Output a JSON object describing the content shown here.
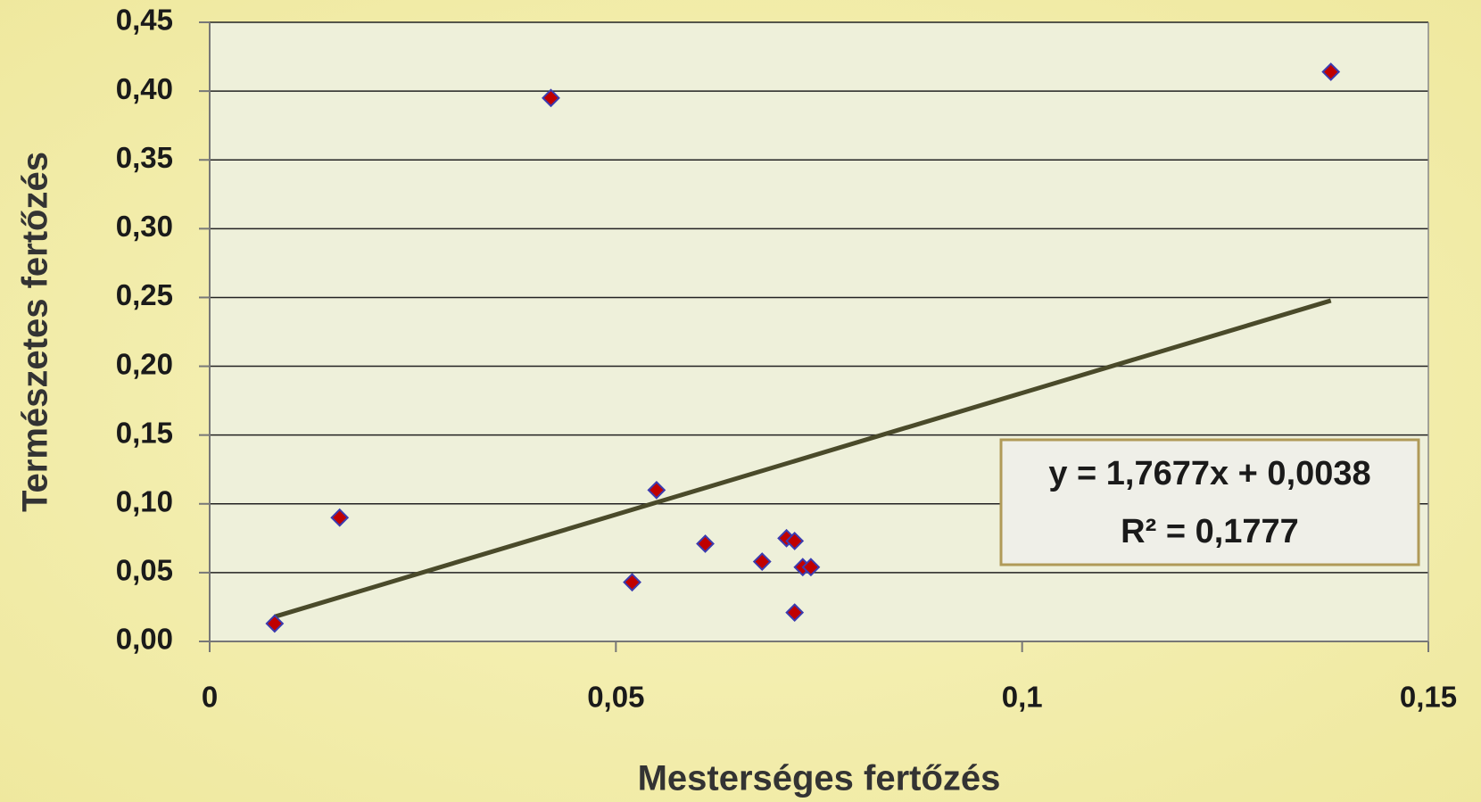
{
  "chart_data": {
    "type": "scatter",
    "x_label": "Mesterséges fertőzés",
    "y_label": "Természetes fertőzés",
    "series": [
      {
        "color": "#c00000",
        "x": [
          0.008,
          0.016,
          0.042,
          0.052,
          0.055,
          0.061,
          0.068,
          0.071,
          0.072,
          0.072,
          0.073,
          0.074,
          0.138
        ],
        "values": [
          0.013,
          0.09,
          0.395,
          0.043,
          0.11,
          0.071,
          0.058,
          0.075,
          0.073,
          0.021,
          0.054,
          0.054,
          0.414
        ]
      }
    ],
    "trendline": {
      "slope": 1.7677,
      "intercept": 0.0038,
      "color": "#4a4a2a",
      "equation": "y = 1,7677x + 0,0038",
      "r2": "R² = 0,1777"
    },
    "xlim": [
      0,
      0.15
    ],
    "xticks": [
      0,
      {
        "value": 0.05,
        "label": "0,05"
      },
      {
        "value": 0.1,
        "label": "0,1"
      },
      {
        "value": 0.15,
        "label": "0,15"
      }
    ],
    "ylim": [
      0,
      0.45
    ],
    "yticks": [
      {
        "value": 0,
        "label": "0,00"
      },
      {
        "value": 0.05,
        "label": "0,05"
      },
      {
        "value": 0.1,
        "label": "0,10"
      },
      {
        "value": 0.15,
        "label": "0,15"
      },
      {
        "value": 0.2,
        "label": "0,20"
      },
      {
        "value": 0.25,
        "label": "0,25"
      },
      {
        "value": 0.3,
        "label": "0,30"
      },
      {
        "value": 0.35,
        "label": "0,35"
      },
      {
        "value": 0.4,
        "label": "0,40"
      },
      {
        "value": 0.45,
        "label": "0,45"
      }
    ],
    "grid": true
  }
}
